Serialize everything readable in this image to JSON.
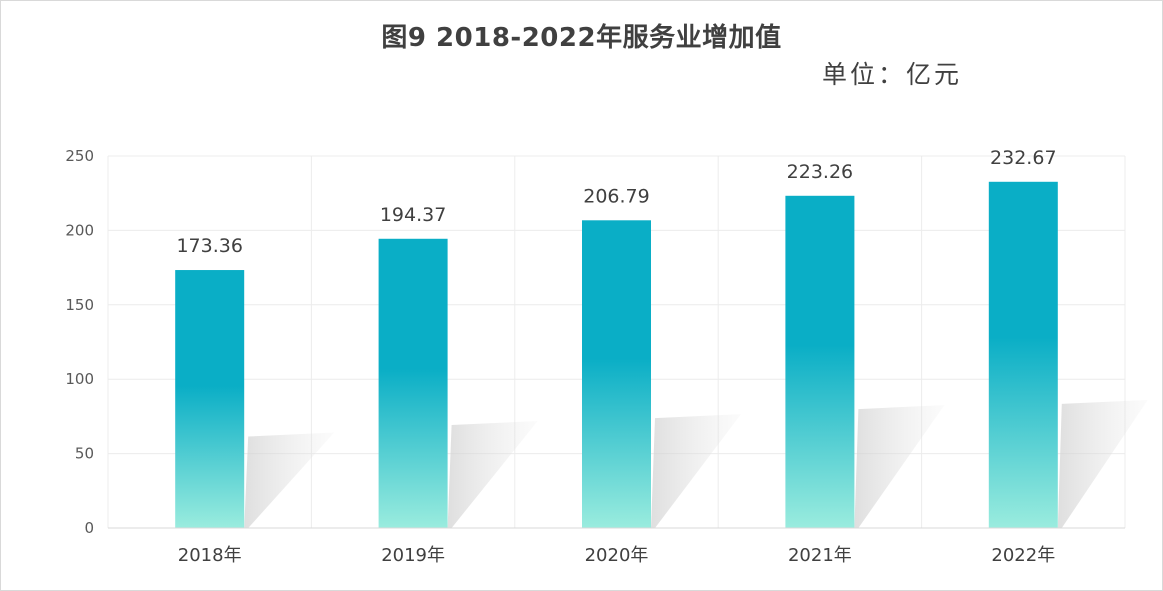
{
  "chart_data": {
    "type": "bar",
    "title": "图9 2018-2022年服务业增加值",
    "unit_label": "单位：亿元",
    "categories": [
      "2018年",
      "2019年",
      "2020年",
      "2021年",
      "2022年"
    ],
    "values": [
      173.36,
      194.37,
      206.79,
      223.26,
      232.67
    ],
    "data_labels": [
      "173.36",
      "194.37",
      "206.79",
      "223.26",
      "232.67"
    ],
    "yticks": [
      "0",
      "50",
      "100",
      "150",
      "200",
      "250"
    ],
    "ylim": [
      0,
      250
    ],
    "xlabel": "",
    "ylabel": "",
    "grid": true,
    "legend": "none",
    "colors": {
      "bar_top": "#0AAEC6",
      "bar_bottom": "#9AECDE",
      "grid": "#ececec",
      "text": "#404040"
    }
  }
}
